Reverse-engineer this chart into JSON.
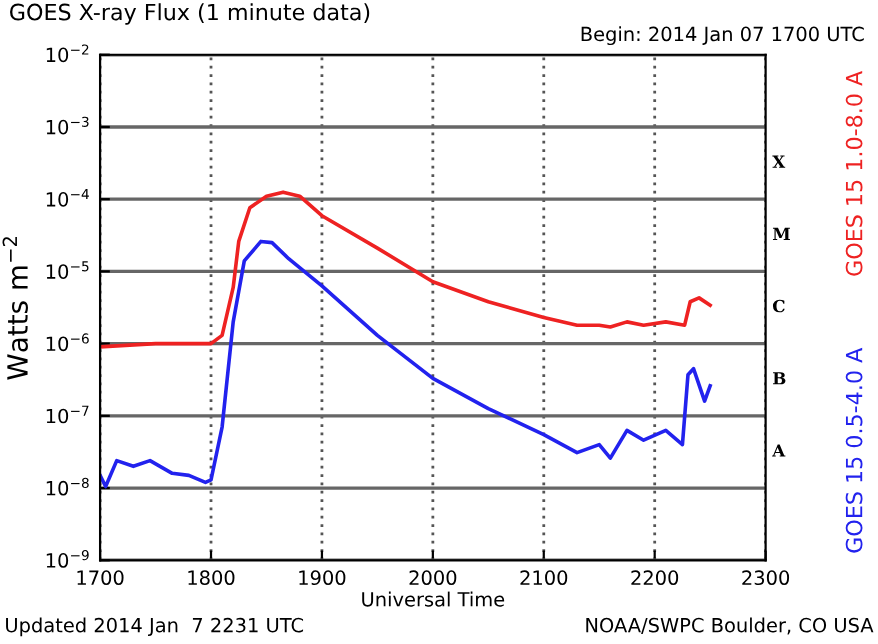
{
  "chart_data": {
    "type": "line",
    "title": "GOES X-ray Flux (1 minute data)",
    "subtitle": "Begin: 2014 Jan 07 1700 UTC",
    "xlabel": "Universal Time",
    "ylabel": "Watts m$^{−2}$",
    "log": "y",
    "grid": true,
    "legend": false,
    "xlim": [
      1700,
      2300
    ],
    "xticks": [
      1700,
      1800,
      1900,
      2000,
      2100,
      2200,
      2300
    ],
    "ylim": [
      1e-09,
      0.01
    ],
    "yticks": [
      {
        "value": 1e-09,
        "label": "10$^{−9}$"
      },
      {
        "value": 1e-08,
        "label": "10$^{−8}$"
      },
      {
        "value": 1e-07,
        "label": "10$^{−7}$"
      },
      {
        "value": 1e-06,
        "label": "10$^{−6}$"
      },
      {
        "value": 1e-05,
        "label": "10$^{−5}$"
      },
      {
        "value": 0.0001,
        "label": "10$^{−4}$"
      },
      {
        "value": 0.001,
        "label": "10$^{−3}$"
      },
      {
        "value": 0.01,
        "label": "10$^{−2}$"
      }
    ],
    "annotations": [
      "A",
      "B",
      "C",
      "M",
      "X",
      "Updated 2014 Jan  7 2231 UTC",
      "NOAA/SWPC Boulder, CO USA"
    ],
    "series": [
      {
        "name": "GOES 15 1.0-8.0 A",
        "color": "#ee2222",
        "x": [
          1700,
          1750,
          1775,
          1800,
          1810,
          1820,
          1825,
          1835,
          1850,
          1865,
          1880,
          1900,
          1950,
          2000,
          2050,
          2100,
          2130,
          2150,
          2160,
          2175,
          2190,
          2210,
          2227,
          2232,
          2240,
          2250
        ],
        "values": [
          9e-07,
          1e-06,
          1e-06,
          1e-06,
          1.3e-06,
          6e-06,
          2.6e-05,
          7.6e-05,
          0.00011,
          0.000125,
          0.00011,
          5.9e-05,
          2.1e-05,
          7.2e-06,
          3.8e-06,
          2.3e-06,
          1.8e-06,
          1.8e-06,
          1.7e-06,
          2e-06,
          1.8e-06,
          2e-06,
          1.8e-06,
          3.8e-06,
          4.3e-06,
          3.4e-06
        ]
      },
      {
        "name": "GOES 15 0.5-4.0 A",
        "color": "#2222ee",
        "x": [
          1700,
          1705,
          1715,
          1730,
          1745,
          1765,
          1780,
          1795,
          1800,
          1810,
          1820,
          1830,
          1845,
          1855,
          1870,
          1900,
          1950,
          2000,
          2050,
          2100,
          2130,
          2150,
          2160,
          2175,
          2190,
          2210,
          2225,
          2230,
          2235,
          2245,
          2250
        ],
        "values": [
          1.5e-08,
          1.05e-08,
          2.4e-08,
          2e-08,
          2.4e-08,
          1.6e-08,
          1.5e-08,
          1.2e-08,
          1.3e-08,
          7e-08,
          2e-06,
          1.4e-05,
          2.6e-05,
          2.5e-05,
          1.5e-05,
          6.3e-06,
          1.3e-06,
          3.3e-07,
          1.26e-07,
          5.5e-08,
          3.1e-08,
          4e-08,
          2.6e-08,
          6.3e-08,
          4.6e-08,
          6.3e-08,
          4e-08,
          3.7e-07,
          4.5e-07,
          1.6e-07,
          2.6e-07
        ]
      }
    ]
  }
}
